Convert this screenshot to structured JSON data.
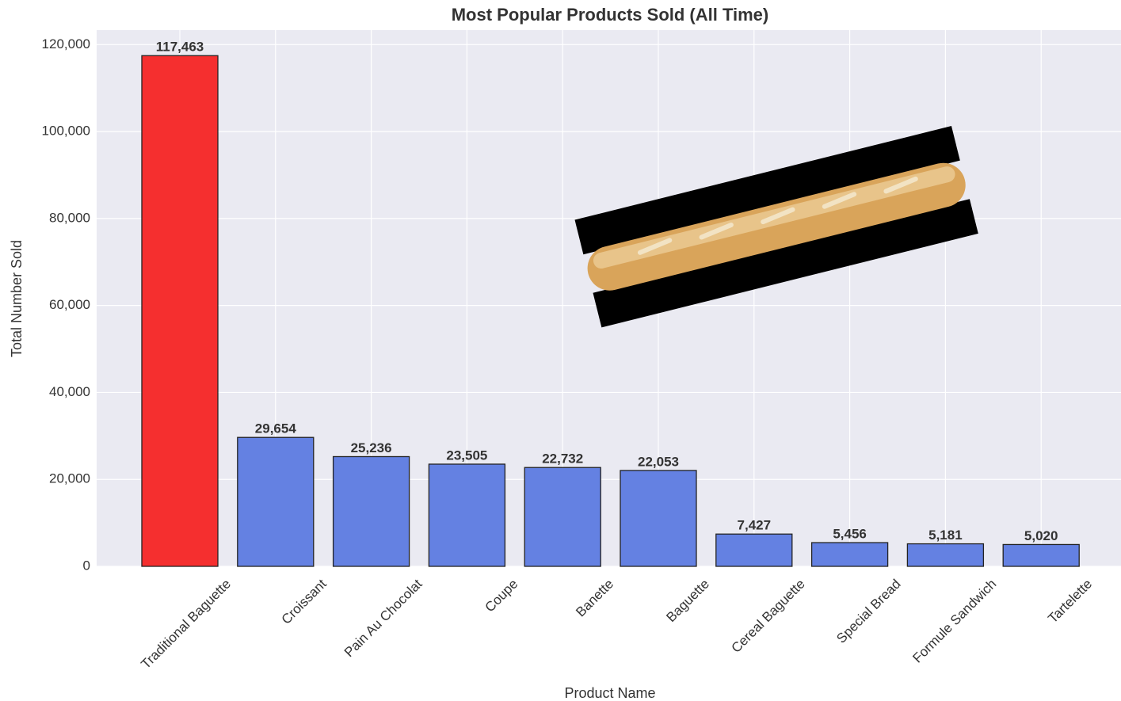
{
  "chart_data": {
    "type": "bar",
    "title": "Most Popular Products Sold (All Time)",
    "x_label": "Product Name",
    "y_label": "Total Number Sold",
    "categories": [
      "Traditional Baguette",
      "Croissant",
      "Pain Au Chocolat",
      "Coupe",
      "Banette",
      "Baguette",
      "Cereal Baguette",
      "Special Bread",
      "Formule Sandwich",
      "Tartelette"
    ],
    "values": [
      117463,
      29654,
      25236,
      23505,
      22732,
      22053,
      7427,
      5456,
      5181,
      5020
    ],
    "value_labels": [
      "117,463",
      "29,654",
      "25,236",
      "23,505",
      "22,732",
      "22,053",
      "7,427",
      "5,456",
      "5,181",
      "5,020"
    ],
    "colors": [
      "#f52f2f",
      "#6481e2",
      "#6481e2",
      "#6481e2",
      "#6481e2",
      "#6481e2",
      "#6481e2",
      "#6481e2",
      "#6481e2",
      "#6481e2"
    ],
    "ylim": [
      0,
      123336
    ],
    "yticks": [
      0,
      {
        "value": 20000,
        "label": "20,000"
      },
      {
        "value": 40000,
        "label": "40,000"
      },
      {
        "value": 60000,
        "label": "60,000"
      },
      {
        "value": 80000,
        "label": "80,000"
      },
      {
        "value": 100000,
        "label": "100,000"
      },
      {
        "value": 120000,
        "label": "120,000"
      }
    ],
    "grid": true
  }
}
